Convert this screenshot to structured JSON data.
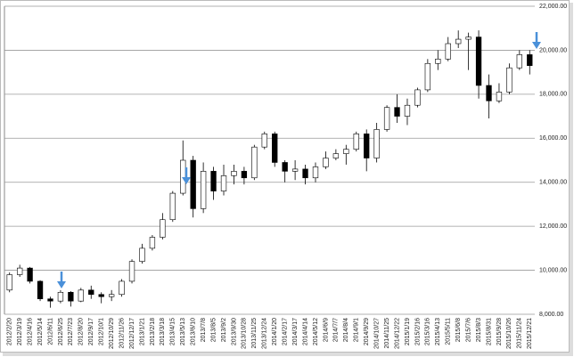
{
  "chart_data": {
    "type": "candlestick",
    "categories": [
      "2012/2/20",
      "2012/3/19",
      "2012/4/16",
      "2012/5/14",
      "2012/6/11",
      "2012/6/25",
      "2012/7/23",
      "2012/8/20",
      "2012/9/17",
      "2012/10/1",
      "2012/10/29",
      "2012/11/26",
      "2012/12/17",
      "2013/1/21",
      "2013/2/18",
      "2013/3/18",
      "2013/4/15",
      "2013/5/13",
      "2013/6/10",
      "2013/7/8",
      "2013/8/5",
      "2013/9/2",
      "2013/9/30",
      "2013/10/28",
      "2013/11/25",
      "2013/12/24",
      "2014/1/20",
      "2014/2/17",
      "2014/3/17",
      "2014/4/14",
      "2014/5/12",
      "2014/6/9",
      "2014/7/7",
      "2014/8/4",
      "2014/9/1",
      "2014/9/29",
      "2014/10/27",
      "2014/11/25",
      "2014/12/22",
      "2015/1/19",
      "2015/2/16",
      "2015/3/16",
      "2015/4/13",
      "2015/5/11",
      "2015/6/8",
      "2015/7/6",
      "2015/8/3",
      "2015/8/31",
      "2015/9/28",
      "2015/10/26",
      "2015/11/24",
      "2015/12/21"
    ],
    "open": [
      9100,
      9800,
      10100,
      9500,
      8700,
      8600,
      9000,
      8600,
      9100,
      8900,
      8800,
      8900,
      9500,
      10400,
      11000,
      11500,
      12300,
      13500,
      15000,
      12800,
      14500,
      13600,
      14300,
      14500,
      14200,
      15600,
      16200,
      14900,
      14500,
      14600,
      14200,
      14700,
      15100,
      15300,
      15500,
      16200,
      15100,
      16400,
      17400,
      17000,
      17500,
      18200,
      19400,
      19600,
      20300,
      20500,
      20600,
      18400,
      17700,
      18100,
      19200,
      19800
    ],
    "high": [
      9900,
      10250,
      10150,
      9550,
      8800,
      9100,
      9050,
      9200,
      9300,
      9000,
      9100,
      9600,
      10500,
      11200,
      11600,
      12600,
      13600,
      15900,
      15200,
      14900,
      14700,
      14800,
      14800,
      14700,
      15700,
      16300,
      16300,
      15000,
      15000,
      14800,
      14900,
      15400,
      15500,
      15700,
      16300,
      16400,
      16700,
      17500,
      18000,
      17800,
      18300,
      19600,
      20000,
      20600,
      20900,
      20800,
      20900,
      18900,
      18500,
      19400,
      20000,
      20000
    ],
    "low": [
      9000,
      9700,
      9400,
      8600,
      8300,
      8500,
      8350,
      8550,
      8700,
      8500,
      8600,
      8800,
      9400,
      10300,
      10900,
      11400,
      12200,
      13400,
      12400,
      12600,
      13200,
      13400,
      13900,
      13900,
      14100,
      15500,
      14700,
      14000,
      14100,
      13900,
      14000,
      14600,
      15000,
      14800,
      15400,
      14500,
      14900,
      16300,
      16700,
      16600,
      17400,
      18100,
      19100,
      19500,
      20100,
      19100,
      17800,
      16900,
      17600,
      18000,
      19100,
      18900
    ],
    "close": [
      9800,
      10100,
      9500,
      8700,
      8600,
      9000,
      8600,
      9100,
      8900,
      8800,
      8900,
      9500,
      10400,
      11000,
      11500,
      12300,
      13500,
      15000,
      12800,
      14500,
      13600,
      14300,
      14500,
      14200,
      15600,
      16200,
      14900,
      14500,
      14600,
      14200,
      14700,
      15100,
      15300,
      15500,
      16200,
      15100,
      16400,
      17400,
      17000,
      17500,
      18200,
      19400,
      19600,
      20300,
      20500,
      20600,
      18400,
      17700,
      18100,
      19200,
      19800,
      19300
    ],
    "up_color": "#ffffff",
    "down_color": "#000000",
    "outline_color": "#000000",
    "ylim": [
      8000,
      22000
    ],
    "yticks": [
      {
        "value": 8000,
        "label": "8,000.00"
      },
      {
        "value": 10000,
        "label": "10,000.00"
      },
      {
        "value": 12000,
        "label": "12,000.00"
      },
      {
        "value": 14000,
        "label": "14,000.00"
      },
      {
        "value": 16000,
        "label": "16,000.00"
      },
      {
        "value": 18000,
        "label": "18,000.00"
      },
      {
        "value": 20000,
        "label": "20,000.00"
      },
      {
        "value": 22000,
        "label": "22,000.00"
      }
    ],
    "grid": true
  }
}
